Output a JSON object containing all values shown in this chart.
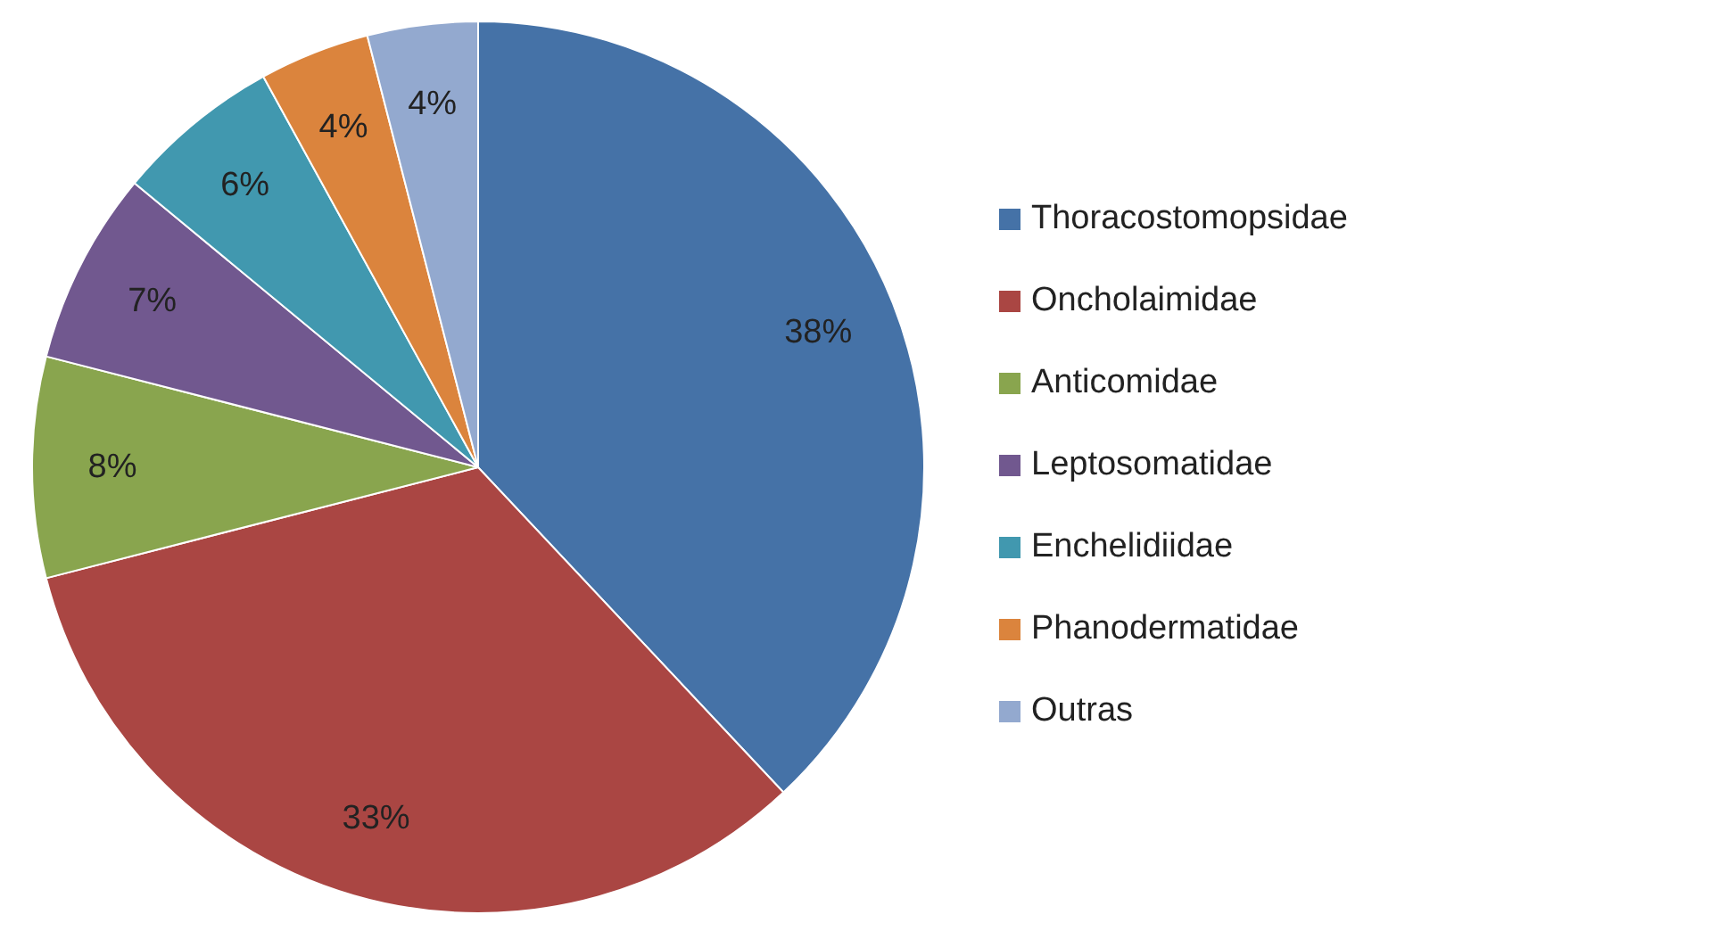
{
  "chart_data": {
    "type": "pie",
    "categories": [
      "Thoracostomopsidae",
      "Oncholaimidae",
      "Anticomidae",
      "Leptosomatidae",
      "Enchelidiidae",
      "Phanodermatidae",
      "Outras"
    ],
    "values": [
      38,
      33,
      8,
      7,
      6,
      4,
      4
    ],
    "colors": [
      "#4572a7",
      "#aa4643",
      "#89a54e",
      "#71588f",
      "#4198af",
      "#db843d",
      "#93a9cf"
    ],
    "value_labels": [
      "38%",
      "33%",
      "8%",
      "7%",
      "6%",
      "4%",
      "4%"
    ],
    "legend": "right"
  }
}
